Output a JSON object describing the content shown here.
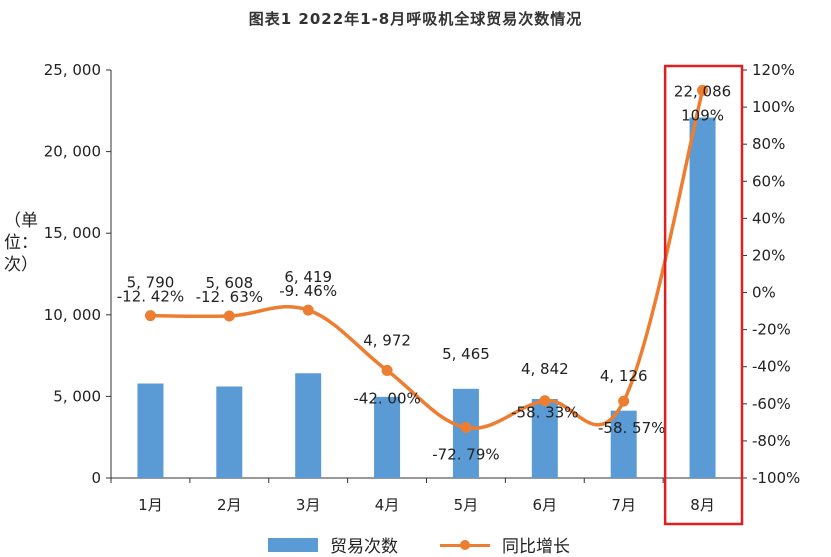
{
  "chart_data": {
    "type": "bar",
    "title": "图表1   2022年1-8月呼吸机全球贸易次数情况",
    "ylabel": "（单位：次）",
    "categories": [
      "1月",
      "2月",
      "3月",
      "4月",
      "5月",
      "6月",
      "7月",
      "8月"
    ],
    "series": [
      {
        "name": "贸易次数",
        "type": "bar",
        "axis": "left",
        "values": [
          5790,
          5608,
          6419,
          4972,
          5465,
          4842,
          4126,
          22086
        ],
        "labels": [
          "5, 790",
          "5, 608",
          "6, 419",
          "4, 972",
          "5, 465",
          "4, 842",
          "4, 126",
          "22, 086"
        ],
        "color": "#5B9BD5"
      },
      {
        "name": "同比增长",
        "type": "line",
        "axis": "right",
        "values": [
          -12.42,
          -12.63,
          -9.46,
          -42.0,
          -72.79,
          -58.33,
          -58.57,
          109
        ],
        "labels": [
          "-12. 42%",
          "-12. 63%",
          "-9. 46%",
          "-42. 00%",
          "-72. 79%",
          "-58. 33%",
          "-58. 57%",
          "109%"
        ],
        "color": "#ED7D31"
      }
    ],
    "left_axis": {
      "ylim": [
        0,
        25000
      ],
      "ticks": [
        0,
        5000,
        10000,
        15000,
        20000,
        25000
      ],
      "tick_labels": [
        "0",
        "5, 000",
        "10, 000",
        "15, 000",
        "20, 000",
        "25, 000"
      ]
    },
    "right_axis": {
      "ylim": [
        -100,
        120
      ],
      "ticks": [
        -100,
        -80,
        -60,
        -40,
        -20,
        0,
        20,
        40,
        60,
        80,
        100,
        120
      ],
      "tick_labels": [
        "-100%",
        "-80%",
        "-60%",
        "-40%",
        "-20%",
        "0%",
        "20%",
        "40%",
        "60%",
        "80%",
        "100%",
        "120%"
      ]
    },
    "highlight": {
      "category": "8月",
      "color": "#E02020"
    },
    "grid": false,
    "legend_position": "bottom"
  }
}
